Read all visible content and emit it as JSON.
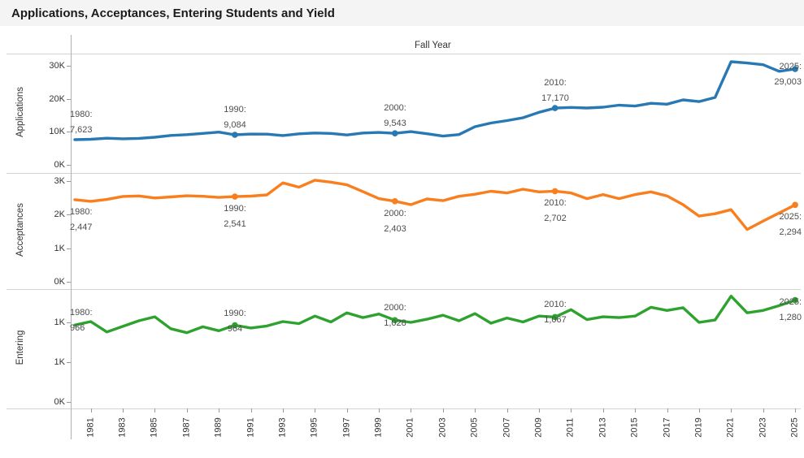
{
  "title": "Applications, Acceptances, Entering Students and Yield",
  "x_axis": {
    "title": "Fall Year",
    "tick_labels": [
      "1981",
      "1983",
      "1985",
      "1987",
      "1989",
      "1991",
      "1993",
      "1995",
      "1997",
      "1999",
      "2001",
      "2003",
      "2005",
      "2007",
      "2009",
      "2011",
      "2013",
      "2015",
      "2017",
      "2019",
      "2021",
      "2023",
      "2025"
    ]
  },
  "chart_data": {
    "type": "line",
    "x_axis_title": "Fall Year",
    "years": [
      1980,
      1981,
      1982,
      1983,
      1984,
      1985,
      1986,
      1987,
      1988,
      1989,
      1990,
      1991,
      1992,
      1993,
      1994,
      1995,
      1996,
      1997,
      1998,
      1999,
      2000,
      2001,
      2002,
      2003,
      2004,
      2005,
      2006,
      2007,
      2008,
      2009,
      2010,
      2011,
      2012,
      2013,
      2014,
      2015,
      2016,
      2017,
      2018,
      2019,
      2020,
      2021,
      2022,
      2023,
      2024,
      2025
    ],
    "marked_years": [
      1990,
      2000,
      2010,
      2025
    ],
    "series": [
      {
        "name": "Applications",
        "color": "#2878B4",
        "ylim": [
          0,
          33700
        ],
        "y_ticks": [
          {
            "value": 30000,
            "label": "30K"
          },
          {
            "value": 20000,
            "label": "20K"
          },
          {
            "value": 10000,
            "label": "10K"
          },
          {
            "value": 0,
            "label": "0K"
          }
        ],
        "values": [
          7623,
          7750,
          8050,
          7880,
          8020,
          8350,
          8900,
          9150,
          9500,
          9900,
          9084,
          9300,
          9280,
          8880,
          9380,
          9620,
          9500,
          9040,
          9620,
          9800,
          9543,
          10060,
          9400,
          8700,
          9160,
          11560,
          12650,
          13400,
          14260,
          15900,
          17170,
          17380,
          17200,
          17450,
          18060,
          17800,
          18620,
          18350,
          19650,
          19150,
          20400,
          31200,
          30800,
          30300,
          28300,
          29003
        ],
        "annotations": [
          {
            "year": 1980,
            "label": "1980:",
            "value_label": "7,623"
          },
          {
            "year": 1990,
            "label": "1990:",
            "value_label": "9,084"
          },
          {
            "year": 2000,
            "label": "2000:",
            "value_label": "9,543"
          },
          {
            "year": 2010,
            "label": "2010:",
            "value_label": "17,170"
          },
          {
            "year": 2025,
            "label": "2025:",
            "value_label": "29,003"
          }
        ]
      },
      {
        "name": "Acceptances",
        "color": "#F97E1E",
        "ylim": [
          0,
          3245
        ],
        "y_ticks": [
          {
            "value": 3000,
            "label": "3K"
          },
          {
            "value": 2000,
            "label": "2K"
          },
          {
            "value": 1000,
            "label": "1K"
          },
          {
            "value": 0,
            "label": "0K"
          }
        ],
        "values": [
          2447,
          2400,
          2455,
          2545,
          2560,
          2500,
          2530,
          2565,
          2550,
          2515,
          2541,
          2555,
          2590,
          2950,
          2820,
          3030,
          2970,
          2890,
          2690,
          2480,
          2403,
          2300,
          2470,
          2420,
          2550,
          2610,
          2700,
          2650,
          2760,
          2680,
          2702,
          2650,
          2480,
          2600,
          2480,
          2600,
          2680,
          2560,
          2300,
          1960,
          2030,
          2150,
          1560,
          1810,
          2050,
          2294
        ],
        "annotations": [
          {
            "year": 1980,
            "label": "1980:",
            "value_label": "2,447"
          },
          {
            "year": 1990,
            "label": "1990:",
            "value_label": "2,541"
          },
          {
            "year": 2000,
            "label": "2000:",
            "value_label": "2,403"
          },
          {
            "year": 2010,
            "label": "2010:",
            "value_label": "2,702"
          },
          {
            "year": 2025,
            "label": "2025:",
            "value_label": "2,294"
          }
        ]
      },
      {
        "name": "Entering",
        "color": "#2EA22E",
        "ylim": [
          0,
          1418
        ],
        "y_ticks": [
          {
            "value": 1000,
            "label": "1K"
          },
          {
            "value": 500,
            "label": "1K"
          },
          {
            "value": 0,
            "label": "0K"
          }
        ],
        "values": [
          966,
          1010,
          880,
          950,
          1020,
          1070,
          920,
          870,
          945,
          895,
          964,
          930,
          955,
          1010,
          985,
          1080,
          1005,
          1120,
          1060,
          1105,
          1028,
          1000,
          1040,
          1090,
          1020,
          1110,
          990,
          1055,
          1005,
          1080,
          1067,
          1160,
          1035,
          1070,
          1060,
          1080,
          1190,
          1150,
          1185,
          1000,
          1030,
          1330,
          1120,
          1150,
          1210,
          1280
        ],
        "annotations": [
          {
            "year": 1980,
            "label": "1980:",
            "value_label": "966"
          },
          {
            "year": 1990,
            "label": "1990:",
            "value_label": "964"
          },
          {
            "year": 2000,
            "label": "2000:",
            "value_label": "1,028"
          },
          {
            "year": 2010,
            "label": "2010:",
            "value_label": "1,067"
          },
          {
            "year": 2025,
            "label": "2025:",
            "value_label": "1,280"
          }
        ]
      }
    ]
  }
}
